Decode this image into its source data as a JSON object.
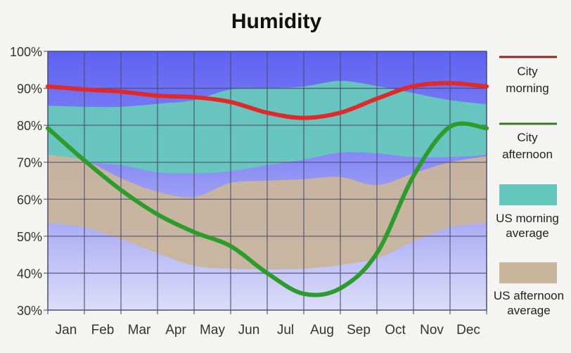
{
  "chart_data": {
    "type": "area",
    "title": "Humidity",
    "xlabel": "",
    "ylabel": "",
    "ylim": [
      30,
      100
    ],
    "yticks": [
      "100%",
      "90%",
      "80%",
      "70%",
      "60%",
      "50%",
      "40%",
      "30%"
    ],
    "ytick_values": [
      100,
      90,
      80,
      70,
      60,
      50,
      40,
      30
    ],
    "categories": [
      "Jan",
      "Feb",
      "Mar",
      "Apr",
      "May",
      "Jun",
      "Jul",
      "Aug",
      "Sep",
      "Oct",
      "Nov",
      "Dec"
    ],
    "x_note": "values sampled at the 13 month boundaries (start of Jan to end of Dec)",
    "x": [
      0,
      1,
      2,
      3,
      4,
      5,
      6,
      7,
      8,
      9,
      10,
      11,
      12
    ],
    "grid": true,
    "legend_position": "right",
    "series": [
      {
        "name": "City morning",
        "kind": "line",
        "color": "#e02a2a",
        "legend_color": "#8b2a1e",
        "values": [
          90.5,
          89.7,
          89.1,
          88.0,
          87.6,
          86.3,
          83.4,
          82.0,
          83.4,
          87.2,
          90.6,
          91.4,
          90.5
        ]
      },
      {
        "name": "City afternoon",
        "kind": "line",
        "color": "#2c9c2c",
        "legend_color": "#3a7a2a",
        "values": [
          79.2,
          70.5,
          62.5,
          55.9,
          51.1,
          47.3,
          40.0,
          34.4,
          35.9,
          45.4,
          66.3,
          79.6,
          79.2
        ]
      },
      {
        "name": "US morning average",
        "kind": "band",
        "color": "#66c8bc",
        "upper": [
          85.3,
          85.0,
          85.0,
          85.8,
          86.8,
          89.7,
          90.0,
          90.5,
          92.0,
          90.6,
          88.7,
          86.8,
          85.7
        ],
        "lower": [
          72.0,
          70.0,
          69.2,
          67.3,
          67.0,
          67.6,
          69.2,
          70.7,
          72.6,
          72.4,
          71.4,
          71.4,
          72.0
        ]
      },
      {
        "name": "US afternoon average",
        "kind": "band",
        "color": "#c9b59c",
        "upper": [
          72.0,
          70.5,
          65.7,
          62.0,
          60.6,
          64.4,
          65.0,
          65.4,
          66.0,
          63.8,
          67.0,
          70.0,
          71.6
        ],
        "lower": [
          53.6,
          52.4,
          49.2,
          45.4,
          42.0,
          41.2,
          41.0,
          41.2,
          42.2,
          44.0,
          48.6,
          52.4,
          53.6
        ]
      }
    ],
    "legend": [
      {
        "line1": "City",
        "line2": "morning"
      },
      {
        "line1": "City",
        "line2": "afternoon"
      },
      {
        "line1": "US morning",
        "line2": "average"
      },
      {
        "line1": "US afternoon",
        "line2": "average"
      }
    ]
  }
}
